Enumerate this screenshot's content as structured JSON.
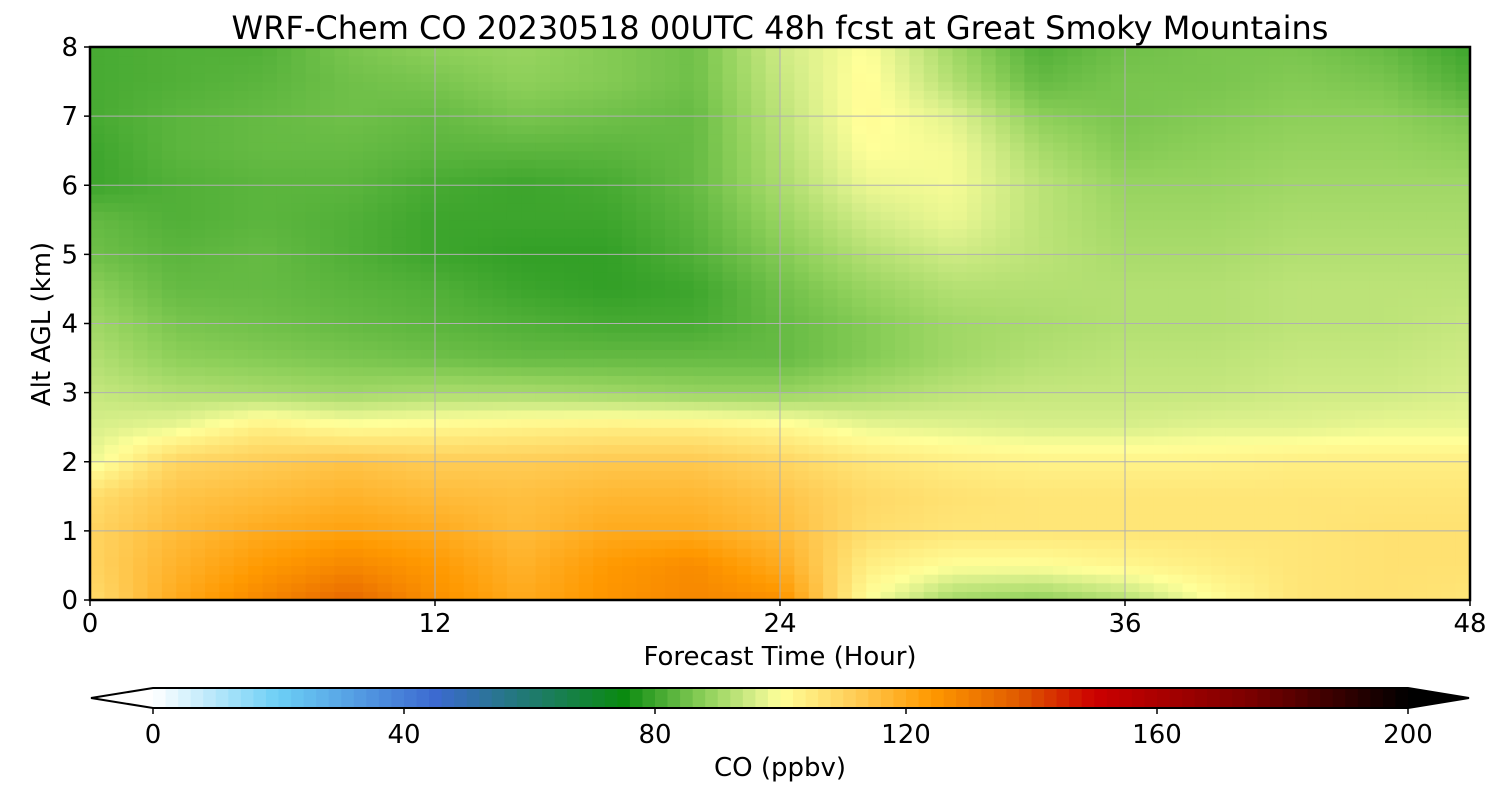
{
  "chart_data": {
    "type": "heatmap",
    "title": "WRF-Chem CO  20230518 00UTC 48h fcst at Great Smoky Mountains",
    "xlabel": "Forecast Time (Hour)",
    "ylabel": "Alt AGL (km)",
    "xlim": [
      0,
      48
    ],
    "ylim": [
      0,
      8
    ],
    "x_ticks": [
      "0",
      "12",
      "24",
      "36",
      "48"
    ],
    "y_ticks": [
      "0",
      "1",
      "2",
      "3",
      "4",
      "5",
      "6",
      "7",
      "8"
    ],
    "grid": true,
    "x": [
      0,
      3,
      6,
      9,
      12,
      15,
      18,
      21,
      24,
      27,
      30,
      33,
      36,
      39,
      42,
      45,
      48
    ],
    "y": [
      0,
      0.5,
      1,
      1.5,
      2,
      2.5,
      3,
      3.5,
      4,
      4.5,
      5,
      5.5,
      6,
      6.5,
      7,
      7.5,
      8
    ],
    "z": [
      [
        108,
        120,
        128,
        135,
        126,
        120,
        125,
        128,
        126,
        100,
        90,
        88,
        92,
        100,
        106,
        107,
        106
      ],
      [
        110,
        118,
        124,
        128,
        124,
        118,
        124,
        127,
        120,
        104,
        100,
        100,
        102,
        104,
        106,
        107,
        107
      ],
      [
        110,
        116,
        120,
        122,
        120,
        116,
        120,
        120,
        116,
        108,
        106,
        106,
        106,
        106,
        106,
        107,
        107
      ],
      [
        108,
        114,
        116,
        118,
        116,
        115,
        117,
        117,
        114,
        109,
        107,
        106,
        106,
        106,
        106,
        106,
        106
      ],
      [
        98,
        110,
        112,
        114,
        112,
        112,
        113,
        113,
        110,
        106,
        104,
        103,
        103,
        103,
        104,
        104,
        104
      ],
      [
        96,
        98,
        104,
        101,
        102,
        103,
        104,
        104,
        102,
        98,
        97,
        96,
        96,
        97,
        97,
        98,
        98
      ],
      [
        94,
        92,
        91,
        90,
        91,
        91,
        90,
        89,
        89,
        91,
        93,
        94,
        94,
        94,
        95,
        95,
        96
      ],
      [
        92,
        88,
        87,
        86,
        85,
        84,
        84,
        84,
        84,
        87,
        90,
        92,
        93,
        93,
        94,
        94,
        95
      ],
      [
        90,
        86,
        85,
        84,
        83,
        82,
        81,
        81,
        84,
        87,
        90,
        91,
        92,
        92,
        93,
        93,
        94
      ],
      [
        88,
        84,
        84,
        83,
        82,
        80,
        79,
        80,
        85,
        89,
        92,
        92,
        92,
        92,
        93,
        93,
        93
      ],
      [
        85,
        83,
        84,
        82,
        80,
        79,
        79,
        82,
        87,
        92,
        95,
        93,
        91,
        91,
        92,
        92,
        92
      ],
      [
        84,
        82,
        83,
        82,
        80,
        80,
        80,
        83,
        89,
        95,
        98,
        93,
        90,
        90,
        91,
        91,
        91
      ],
      [
        80,
        82,
        83,
        83,
        81,
        80,
        81,
        84,
        91,
        98,
        99,
        93,
        89,
        89,
        90,
        90,
        90
      ],
      [
        80,
        83,
        84,
        84,
        83,
        83,
        83,
        84,
        92,
        100,
        99,
        91,
        87,
        88,
        89,
        89,
        88
      ],
      [
        81,
        83,
        84,
        85,
        84,
        86,
        85,
        84,
        93,
        101,
        97,
        88,
        86,
        87,
        88,
        88,
        86
      ],
      [
        81,
        82,
        83,
        85,
        86,
        88,
        87,
        85,
        94,
        101,
        92,
        84,
        86,
        86,
        87,
        86,
        82
      ],
      [
        81,
        82,
        82,
        86,
        88,
        89,
        87,
        85,
        95,
        100,
        90,
        82,
        85,
        86,
        86,
        84,
        80
      ]
    ],
    "colorbar": {
      "label": "CO  (ppbv)",
      "min": 0,
      "max": 200,
      "tick_values": [
        0,
        40,
        80,
        120,
        160,
        200
      ],
      "tick_labels": [
        "0",
        "40",
        "80",
        "120",
        "160",
        "200"
      ],
      "extend": "both",
      "color_stops": [
        {
          "v": 0,
          "c": "#ffffff"
        },
        {
          "v": 20,
          "c": "#6ccff6"
        },
        {
          "v": 45,
          "c": "#3c6ad0"
        },
        {
          "v": 60,
          "c": "#1f7a70"
        },
        {
          "v": 75,
          "c": "#0a8a10"
        },
        {
          "v": 88,
          "c": "#8ed05a"
        },
        {
          "v": 96,
          "c": "#d8ef8a"
        },
        {
          "v": 100,
          "c": "#ffff99"
        },
        {
          "v": 112,
          "c": "#ffcc55"
        },
        {
          "v": 124,
          "c": "#ff9900"
        },
        {
          "v": 138,
          "c": "#e05a00"
        },
        {
          "v": 150,
          "c": "#cc0000"
        },
        {
          "v": 175,
          "c": "#7a0000"
        },
        {
          "v": 200,
          "c": "#000000"
        }
      ],
      "under_color": "#ffffff",
      "over_color": "#000000"
    }
  }
}
